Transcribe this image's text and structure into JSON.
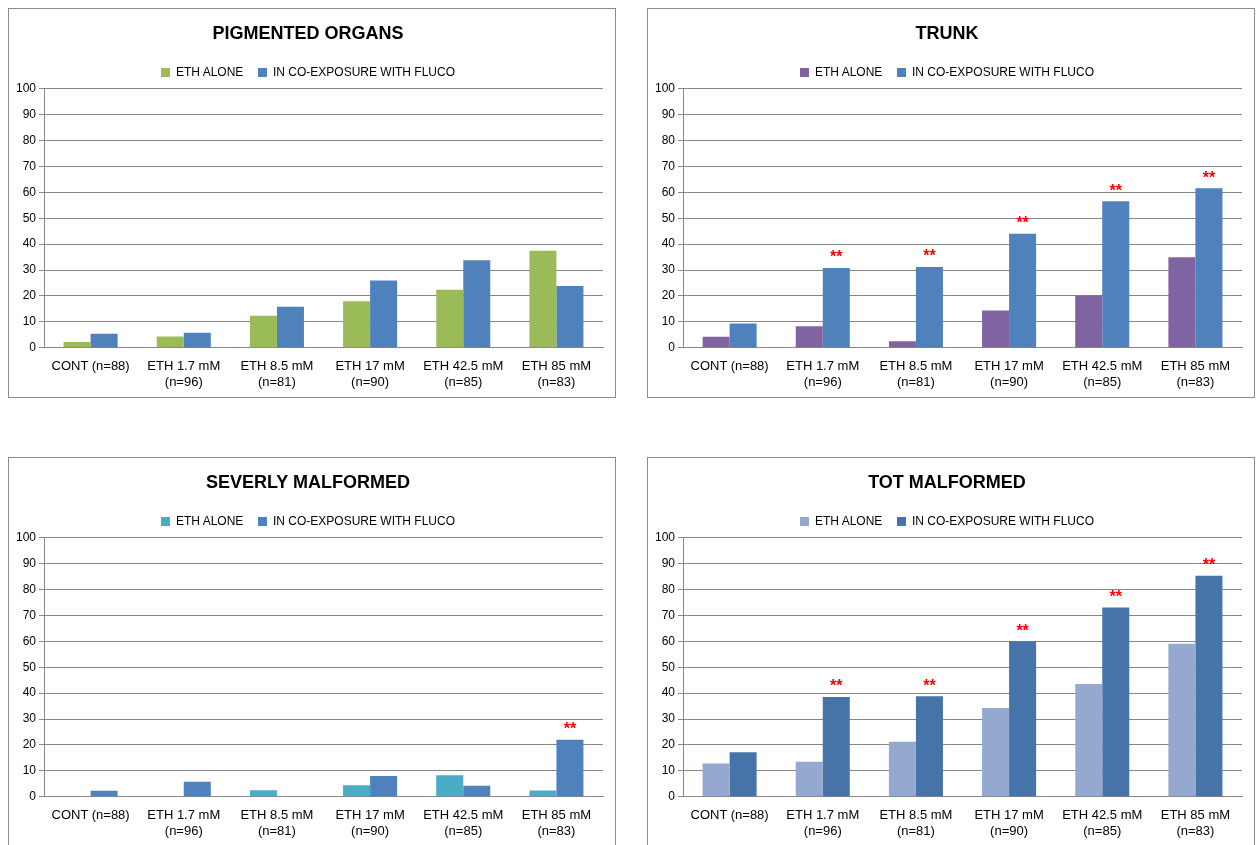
{
  "chart_data": [
    {
      "type": "bar",
      "title": "PIGMENTED ORGANS",
      "categories": [
        "CONT (n=88)",
        "ETH 1.7 mM (n=96)",
        "ETH 8.5 mM (n=81)",
        "ETH 17 mM (n=90)",
        "ETH 42.5 mM (n=85)",
        "ETH 85 mM (n=83)"
      ],
      "series": [
        {
          "name": "ETH ALONE",
          "color": "#9bbb59",
          "values": [
            2.2,
            4.4,
            12.4,
            18,
            22.4,
            37.4
          ]
        },
        {
          "name": "IN CO-EXPOSURE WITH FLUCO",
          "color": "#4f81bd",
          "values": [
            5.4,
            5.8,
            15.8,
            26,
            33.8,
            23.8
          ]
        }
      ],
      "ylim": [
        0,
        100
      ],
      "yticks": [
        0,
        10,
        20,
        30,
        40,
        50,
        60,
        70,
        80,
        90,
        100
      ],
      "grid": "y",
      "legend": "top"
    },
    {
      "type": "bar",
      "title": "TRUNK",
      "categories": [
        "CONT (n=88)",
        "ETH 1.7 mM (n=96)",
        "ETH 8.5 mM (n=81)",
        "ETH 17 mM (n=90)",
        "ETH 42.5 mM (n=85)",
        "ETH 85 mM (n=83)"
      ],
      "series": [
        {
          "name": "ETH ALONE",
          "color": "#8064a2",
          "values": [
            4.3,
            8.3,
            2.5,
            14.4,
            20.2,
            34.9
          ]
        },
        {
          "name": "IN CO-EXPOSURE WITH FLUCO",
          "color": "#4f81bd",
          "values": [
            9.4,
            30.8,
            31.2,
            44,
            56.5,
            61.6
          ]
        }
      ],
      "ylim": [
        0,
        100
      ],
      "yticks": [
        0,
        10,
        20,
        30,
        40,
        50,
        60,
        70,
        80,
        90,
        100
      ],
      "grid": "y",
      "legend": "top",
      "annotations": [
        {
          "text": "**",
          "x": "ETH 1.7 mM (n=96)",
          "y": 30.8
        },
        {
          "text": "**",
          "x": "ETH 8.5 mM (n=81)",
          "y": 31.2
        },
        {
          "text": "**",
          "x": "ETH 17 mM (n=90)",
          "y": 44
        },
        {
          "text": "**",
          "x": "ETH 42.5 mM (n=85)",
          "y": 56.5
        },
        {
          "text": "**",
          "x": "ETH 85 mM (n=83)",
          "y": 61.6
        }
      ]
    },
    {
      "type": "bar",
      "title": "SEVERLY MALFORMED",
      "categories": [
        "CONT (n=88)",
        "ETH 1.7 mM (n=96)",
        "ETH 8.5 mM (n=81)",
        "ETH 17 mM (n=90)",
        "ETH 42.5 mM (n=85)",
        "ETH 85 mM (n=83)"
      ],
      "series": [
        {
          "name": "ETH ALONE",
          "color": "#4bacc6",
          "values": [
            0,
            0,
            2.5,
            4.5,
            8.3,
            2.4
          ]
        },
        {
          "name": "IN CO-EXPOSURE WITH FLUCO",
          "color": "#4f81bd",
          "values": [
            2.3,
            5.8,
            0,
            8,
            4.3,
            22
          ]
        }
      ],
      "ylim": [
        0,
        100
      ],
      "yticks": [
        0,
        10,
        20,
        30,
        40,
        50,
        60,
        70,
        80,
        90,
        100
      ],
      "grid": "y",
      "legend": "top",
      "annotations": [
        {
          "text": "**",
          "x": "ETH 85 mM (n=83)",
          "y": 22
        }
      ]
    },
    {
      "type": "bar",
      "title": "TOT MALFORMED",
      "categories": [
        "CONT (n=88)",
        "ETH 1.7 mM (n=96)",
        "ETH 8.5 mM (n=81)",
        "ETH 17 mM (n=90)",
        "ETH 42.5 mM (n=85)",
        "ETH 85 mM (n=83)"
      ],
      "series": [
        {
          "name": "ETH ALONE",
          "color": "#95a9d0",
          "values": [
            12.8,
            13.5,
            21.2,
            34.3,
            43.5,
            59
          ]
        },
        {
          "name": "IN CO-EXPOSURE WITH FLUCO",
          "color": "#4673a8",
          "values": [
            17.2,
            38.5,
            38.8,
            60,
            73,
            85.3
          ]
        }
      ],
      "ylim": [
        0,
        100
      ],
      "yticks": [
        0,
        10,
        20,
        30,
        40,
        50,
        60,
        70,
        80,
        90,
        100
      ],
      "grid": "y",
      "legend": "top",
      "annotations": [
        {
          "text": "**",
          "x": "ETH 1.7 mM (n=96)",
          "y": 38.5
        },
        {
          "text": "**",
          "x": "ETH 8.5 mM (n=81)",
          "y": 38.8
        },
        {
          "text": "**",
          "x": "ETH 17 mM (n=90)",
          "y": 60
        },
        {
          "text": "**",
          "x": "ETH 42.5 mM (n=85)",
          "y": 73
        },
        {
          "text": "**",
          "x": "ETH 85 mM (n=83)",
          "y": 85.3
        }
      ]
    }
  ]
}
